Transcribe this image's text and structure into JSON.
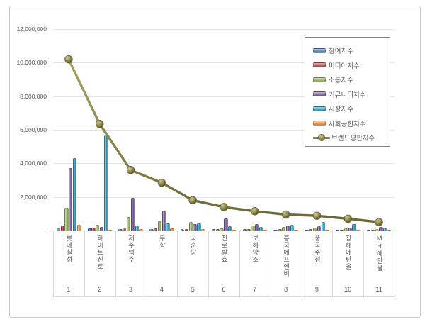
{
  "chart_data": {
    "type": "bar",
    "subtype": "grouped-bars-with-line-overlay",
    "title": "",
    "xlabel": "",
    "ylabel": "",
    "ylim": [
      0,
      12000000
    ],
    "grid": true,
    "legend_position": "top-right",
    "categories": [
      "롯데칠성",
      "하이트진로",
      "제주맥주",
      "무학",
      "국순당",
      "진로발효",
      "보해양조",
      "흥국에프엔비",
      "풍국주정",
      "창해에탄올",
      "MH에탄올"
    ],
    "category_numbers": [
      "1",
      "2",
      "3",
      "4",
      "5",
      "6",
      "7",
      "8",
      "9",
      "10",
      "11"
    ],
    "y_ticks": [
      {
        "value": 12000000,
        "label": "12,000,000"
      },
      {
        "value": 10000000,
        "label": "10,000,000"
      },
      {
        "value": 8000000,
        "label": "8,000,000"
      },
      {
        "value": 6000000,
        "label": "6,000,000"
      },
      {
        "value": 4000000,
        "label": "4,000,000"
      },
      {
        "value": 2000000,
        "label": "2,000,000"
      },
      {
        "value": 0,
        "label": "-"
      }
    ],
    "series": [
      {
        "name": "참여지수",
        "type": "bar",
        "color": "#4A7EBB",
        "values": [
          150000,
          120000,
          100000,
          100000,
          80000,
          70000,
          100000,
          60000,
          50000,
          50000,
          50000
        ]
      },
      {
        "name": "미디어지수",
        "type": "bar",
        "color": "#BE4B48",
        "values": [
          300000,
          150000,
          150000,
          120000,
          100000,
          100000,
          100000,
          80000,
          80000,
          60000,
          60000
        ]
      },
      {
        "name": "소통지수",
        "type": "bar",
        "color": "#9BBB59",
        "values": [
          1350000,
          350000,
          800000,
          570000,
          500000,
          110000,
          300000,
          210000,
          150000,
          130000,
          100000
        ]
      },
      {
        "name": "커뮤니티지수",
        "type": "bar",
        "color": "#7D60A0",
        "values": [
          3700000,
          220000,
          1950000,
          1200000,
          400000,
          700000,
          380000,
          300000,
          260000,
          180000,
          200000
        ]
      },
      {
        "name": "시장지수",
        "type": "bar",
        "color": "#2EA3C5",
        "values": [
          4300000,
          5650000,
          300000,
          430000,
          420000,
          270000,
          210000,
          340000,
          500000,
          400000,
          160000
        ]
      },
      {
        "name": "사회공헌지수",
        "type": "bar",
        "color": "#F79646",
        "values": [
          350000,
          60000,
          80000,
          130000,
          80000,
          50000,
          60000,
          50000,
          40000,
          40000,
          40000
        ]
      },
      {
        "name": "브랜드평판지수",
        "type": "line",
        "color": "#8C874D",
        "marker_fill_light": "#C8C389",
        "marker_fill_dark": "#5E5A2C",
        "values": [
          10200000,
          6350000,
          3600000,
          2850000,
          1800000,
          1400000,
          1150000,
          950000,
          880000,
          700000,
          500000
        ]
      }
    ]
  }
}
